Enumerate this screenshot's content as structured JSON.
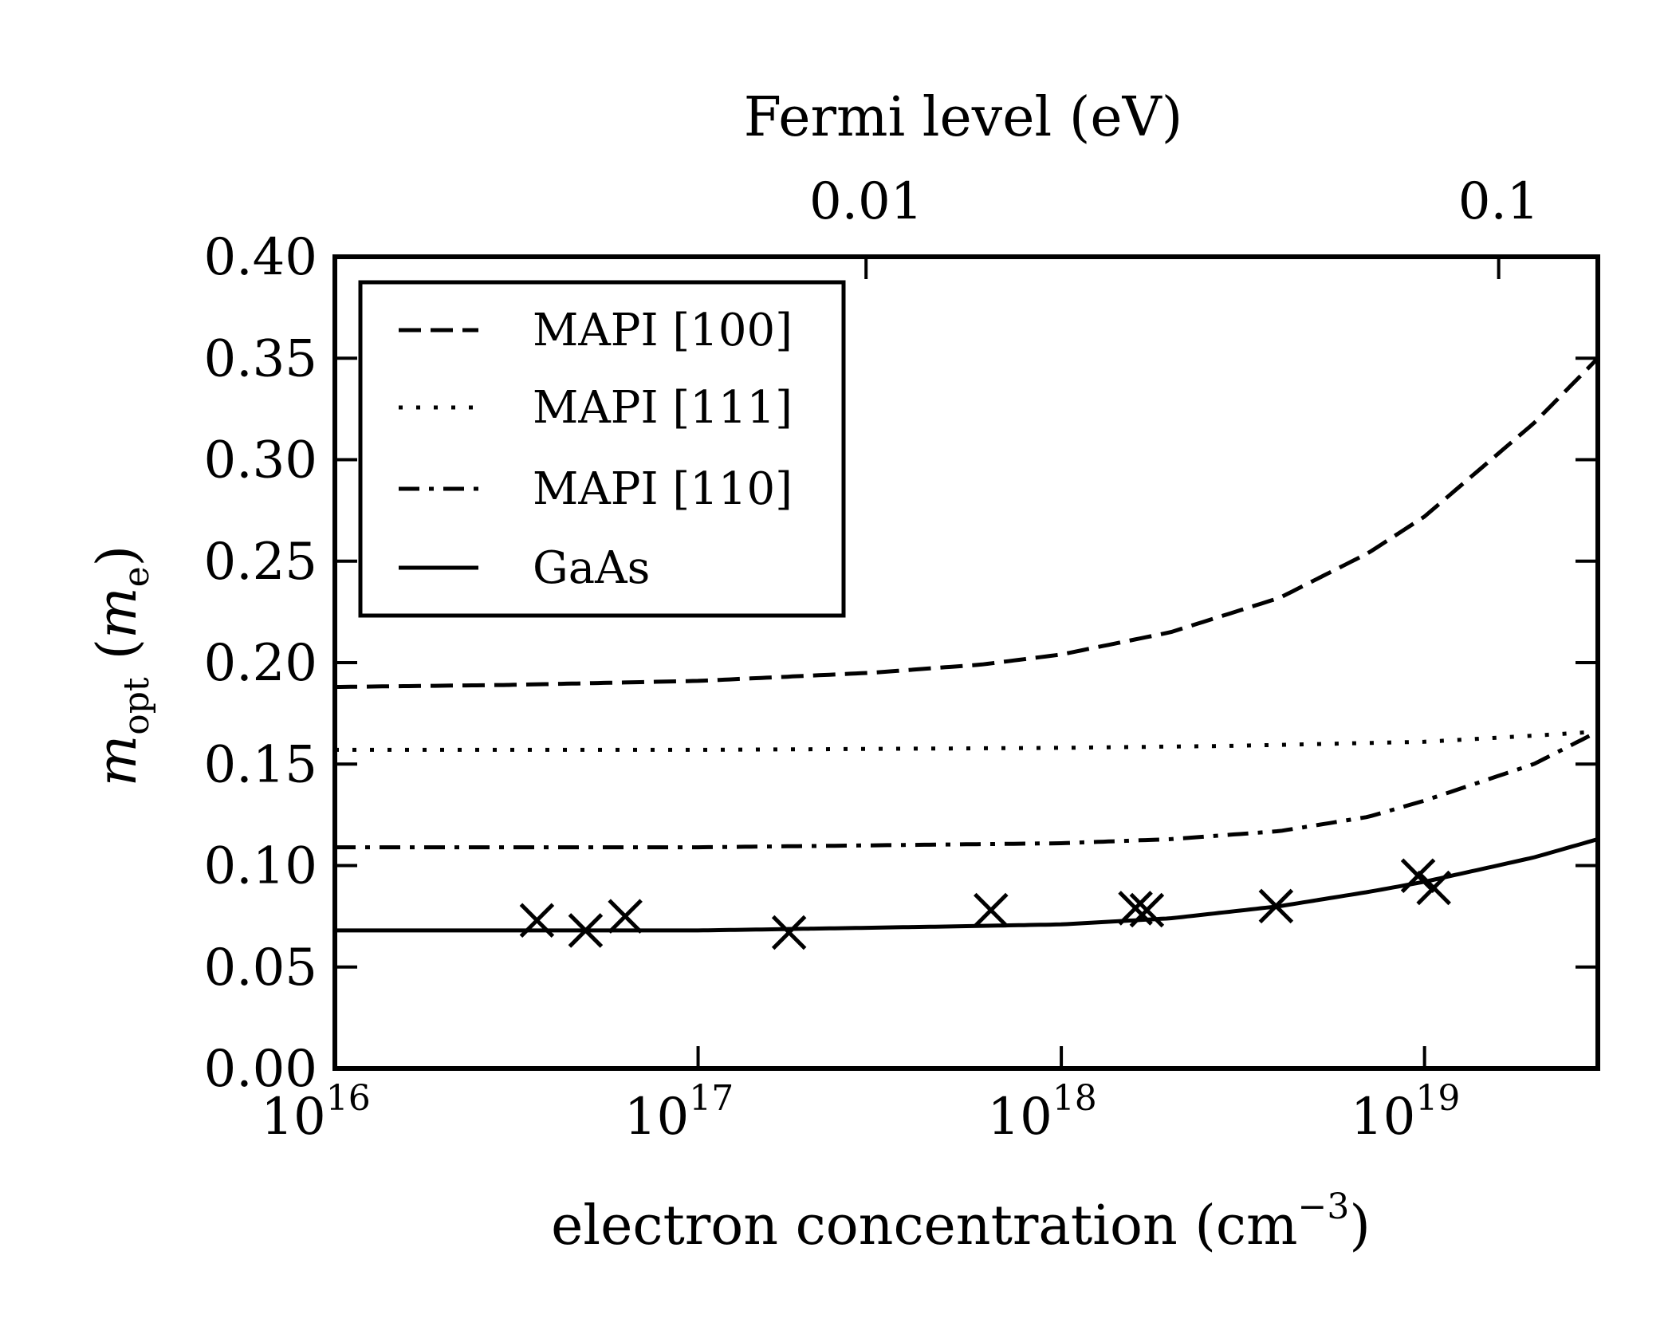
{
  "chart_data": {
    "type": "line",
    "xlabel": "electron concentration (cm",
    "xlabel_exp": "−3",
    "xlabel_close": ")",
    "ylabel_main": "m",
    "ylabel_sub": "opt",
    "ylabel_unit_open": "(",
    "ylabel_unit": "m",
    "ylabel_unit_sub": "e",
    "ylabel_unit_close": ")",
    "top_xlabel": "Fermi level (eV)",
    "x_scale": "log",
    "xlim": [
      1e+16,
      3e+19
    ],
    "ylim": [
      0,
      0.4
    ],
    "grid": false,
    "legend_position": "top-left",
    "x_ticks": [
      {
        "base": "10",
        "exp": "16",
        "value": 1e+16
      },
      {
        "base": "10",
        "exp": "17",
        "value": 1e+17
      },
      {
        "base": "10",
        "exp": "18",
        "value": 1e+18
      },
      {
        "base": "10",
        "exp": "19",
        "value": 1e+19
      }
    ],
    "y_ticks": [
      "0.00",
      "0.05",
      "0.10",
      "0.15",
      "0.20",
      "0.25",
      "0.30",
      "0.35",
      "0.40"
    ],
    "top_ticks": [
      {
        "label": "0.01",
        "n": 2.9e+17
      },
      {
        "label": "0.1",
        "n": 1.6e+19
      }
    ],
    "series": [
      {
        "name": "MAPI [100]",
        "style": "dashed",
        "x": [
          1e+16,
          3e+16,
          1e+17,
          3e+17,
          6e+17,
          1e+18,
          2e+18,
          4e+18,
          7e+18,
          1e+19,
          2e+19,
          3e+19
        ],
        "y": [
          0.188,
          0.189,
          0.191,
          0.195,
          0.199,
          0.204,
          0.215,
          0.232,
          0.254,
          0.272,
          0.318,
          0.35
        ]
      },
      {
        "name": "MAPI [111]",
        "style": "dotted",
        "x": [
          1e+16,
          1e+17,
          1e+18,
          3e+18,
          1e+19,
          2e+19,
          3e+19
        ],
        "y": [
          0.157,
          0.157,
          0.158,
          0.159,
          0.161,
          0.164,
          0.166
        ]
      },
      {
        "name": "MAPI [110]",
        "style": "dashdot",
        "x": [
          1e+16,
          1e+17,
          1e+18,
          2e+18,
          4e+18,
          7e+18,
          1e+19,
          2e+19,
          3e+19
        ],
        "y": [
          0.109,
          0.109,
          0.111,
          0.113,
          0.117,
          0.124,
          0.132,
          0.15,
          0.166
        ]
      },
      {
        "name": "GaAs",
        "style": "solid",
        "x": [
          1e+16,
          1e+17,
          5e+17,
          1e+18,
          2e+18,
          4e+18,
          7e+18,
          1e+19,
          2e+19,
          3e+19
        ],
        "y": [
          0.068,
          0.068,
          0.07,
          0.071,
          0.074,
          0.08,
          0.087,
          0.092,
          0.104,
          0.113
        ]
      }
    ],
    "markers": {
      "symbol": "x",
      "x": [
        3.6e+16,
        4.9e+16,
        6.3e+16,
        1.78e+17,
        6.4e+17,
        1.6e+18,
        1.72e+18,
        3.9e+18,
        9.6e+18,
        1.06e+19
      ],
      "y": [
        0.073,
        0.068,
        0.075,
        0.067,
        0.078,
        0.079,
        0.078,
        0.08,
        0.095,
        0.089
      ]
    }
  }
}
